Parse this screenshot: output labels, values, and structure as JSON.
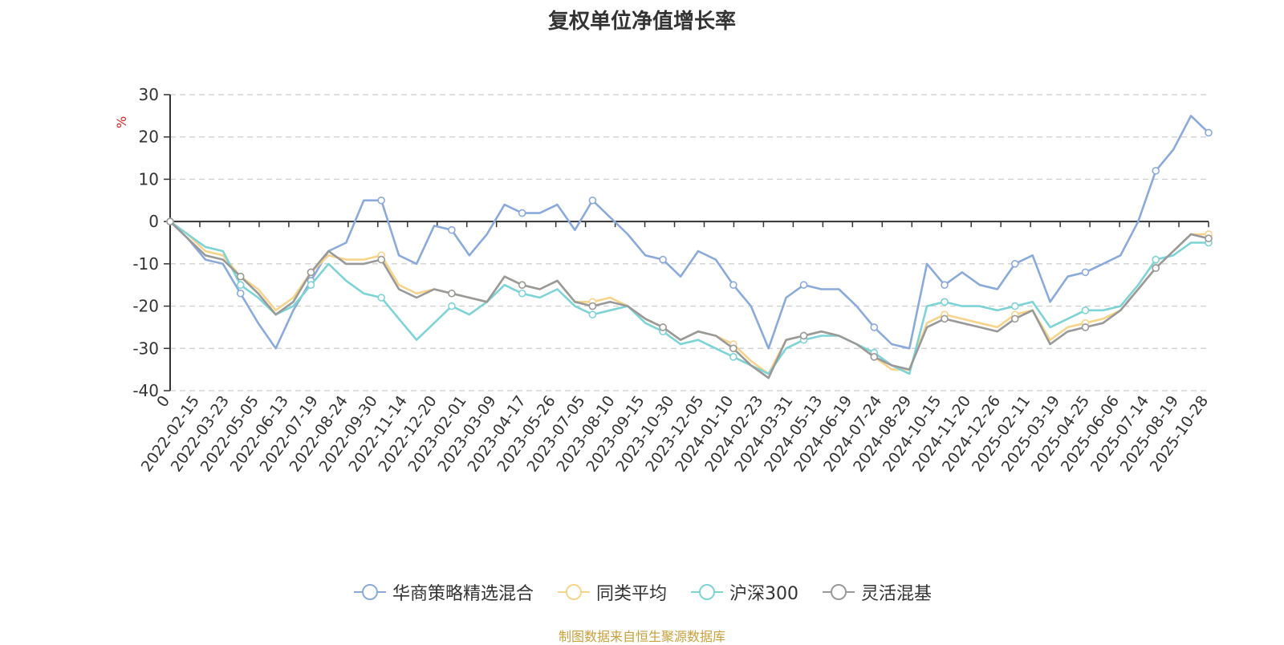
{
  "chart_data": {
    "type": "line",
    "title": "复权单位净值增长率",
    "ylabel": "%",
    "ylim": [
      -40,
      30
    ],
    "yticks": [
      30,
      20,
      10,
      0,
      -10,
      -20,
      -30,
      -40
    ],
    "x_tick_labels": [
      "0",
      "2022-02-15",
      "2022-03-23",
      "2022-05-05",
      "2022-06-13",
      "2022-07-19",
      "2022-08-24",
      "2022-09-30",
      "2022-11-14",
      "2022-12-20",
      "2023-02-01",
      "2023-03-09",
      "2023-04-17",
      "2023-05-26",
      "2023-07-05",
      "2023-08-10",
      "2023-09-15",
      "2023-10-30",
      "2023-12-05",
      "2024-01-10",
      "2024-02-23",
      "2024-03-31",
      "2024-05-13",
      "2024-06-19",
      "2024-07-24",
      "2024-08-29",
      "2024-10-15",
      "2024-11-20",
      "2024-12-26",
      "2025-02-11",
      "2025-03-19",
      "2025-04-25",
      "2025-06-06",
      "2025-07-14",
      "2025-08-19",
      "2025-10-28"
    ],
    "grid": "horizontal dashed",
    "legend_position": "bottom",
    "series": [
      {
        "name": "华商策略精选混合",
        "color": "#8aaadb",
        "values": [
          0,
          -4,
          -9,
          -10,
          -17,
          -24,
          -30,
          -21,
          -14,
          -7,
          -5,
          5,
          5,
          -8,
          -10,
          -1,
          -2,
          -8,
          -3,
          4,
          2,
          2,
          4,
          -2,
          5,
          1,
          -3,
          -8,
          -9,
          -13,
          -7,
          -9,
          -15,
          -20,
          -30,
          -18,
          -15,
          -16,
          -16,
          -20,
          -25,
          -29,
          -30,
          -10,
          -15,
          -12,
          -15,
          -16,
          -10,
          -8,
          -19,
          -13,
          -12,
          -10,
          -8,
          0,
          12,
          17,
          25,
          21
        ]
      },
      {
        "name": "同类平均",
        "color": "#f8d48a",
        "values": [
          0,
          -3,
          -7,
          -8,
          -13,
          -16,
          -21,
          -18,
          -12,
          -8,
          -9,
          -9,
          -8,
          -15,
          -17,
          -16,
          -17,
          -18,
          -19,
          -13,
          -15,
          -16,
          -14,
          -19,
          -19,
          -18,
          -20,
          -23,
          -25,
          -28,
          -26,
          -27,
          -29,
          -33,
          -36,
          -28,
          -27,
          -26,
          -27,
          -29,
          -32,
          -35,
          -35,
          -24,
          -22,
          -23,
          -24,
          -25,
          -22,
          -21,
          -28,
          -25,
          -24,
          -23,
          -21,
          -16,
          -11,
          -7,
          -3,
          -3
        ]
      },
      {
        "name": "沪深300",
        "color": "#7dd3d6",
        "values": [
          0,
          -3,
          -6,
          -7,
          -15,
          -18,
          -22,
          -20,
          -15,
          -10,
          -14,
          -17,
          -18,
          -23,
          -28,
          -24,
          -20,
          -22,
          -19,
          -15,
          -17,
          -18,
          -16,
          -20,
          -22,
          -21,
          -20,
          -24,
          -26,
          -29,
          -28,
          -30,
          -32,
          -34,
          -36,
          -30,
          -28,
          -27,
          -27,
          -29,
          -31,
          -34,
          -36,
          -20,
          -19,
          -20,
          -20,
          -21,
          -20,
          -19,
          -25,
          -23,
          -21,
          -21,
          -20,
          -15,
          -9,
          -8,
          -5,
          -5
        ]
      },
      {
        "name": "灵活混基",
        "color": "#999999",
        "values": [
          0,
          -4,
          -8,
          -9,
          -13,
          -17,
          -22,
          -19,
          -12,
          -7,
          -10,
          -10,
          -9,
          -16,
          -18,
          -16,
          -17,
          -18,
          -19,
          -13,
          -15,
          -16,
          -14,
          -19,
          -20,
          -19,
          -20,
          -23,
          -25,
          -28,
          -26,
          -27,
          -30,
          -34,
          -37,
          -28,
          -27,
          -26,
          -27,
          -29,
          -32,
          -34,
          -35,
          -25,
          -23,
          -24,
          -25,
          -26,
          -23,
          -21,
          -29,
          -26,
          -25,
          -24,
          -21,
          -16,
          -11,
          -7,
          -3,
          -4
        ]
      }
    ]
  },
  "legend": {
    "items": [
      "华商策略精选混合",
      "同类平均",
      "沪深300",
      "灵活混基"
    ]
  },
  "source_note": "制图数据来自恒生聚源数据库"
}
